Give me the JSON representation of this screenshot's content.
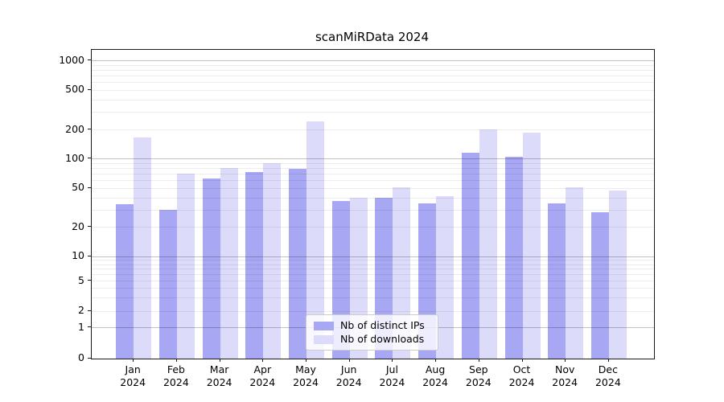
{
  "title": "scanMiRData 2024",
  "chart_data": {
    "type": "bar",
    "title": "scanMiRData 2024",
    "yscale": "log (symlog, linear below 1)",
    "yticks": [
      1000,
      500,
      200,
      100,
      50,
      20,
      10,
      5,
      2,
      1,
      0
    ],
    "ylim": [
      0,
      1300
    ],
    "grid": "horizontal, major and minor, drawn over bars",
    "legend_position": "lower center inside plot",
    "x_categories": [
      {
        "month": "Jan",
        "year": "2024"
      },
      {
        "month": "Feb",
        "year": "2024"
      },
      {
        "month": "Mar",
        "year": "2024"
      },
      {
        "month": "Apr",
        "year": "2024"
      },
      {
        "month": "May",
        "year": "2024"
      },
      {
        "month": "Jun",
        "year": "2024"
      },
      {
        "month": "Jul",
        "year": "2024"
      },
      {
        "month": "Aug",
        "year": "2024"
      },
      {
        "month": "Sep",
        "year": "2024"
      },
      {
        "month": "Oct",
        "year": "2024"
      },
      {
        "month": "Nov",
        "year": "2024"
      },
      {
        "month": "Dec",
        "year": "2024"
      }
    ],
    "series": [
      {
        "name": "Nb of distinct IPs",
        "color": "#a7a7f4",
        "values": [
          34,
          30,
          62,
          73,
          78,
          37,
          40,
          35,
          114,
          105,
          35,
          28
        ]
      },
      {
        "name": "Nb of downloads",
        "color": "#dcdcfa",
        "values": [
          165,
          70,
          80,
          90,
          240,
          40,
          51,
          41,
          200,
          185,
          51,
          47
        ]
      }
    ]
  },
  "colors": {
    "major_gridline": "rgba(0,0,0,0.24)",
    "minor_gridline": "rgba(0,0,0,0.075)",
    "spine": "#1a1a1a",
    "background": "#ffffff"
  }
}
